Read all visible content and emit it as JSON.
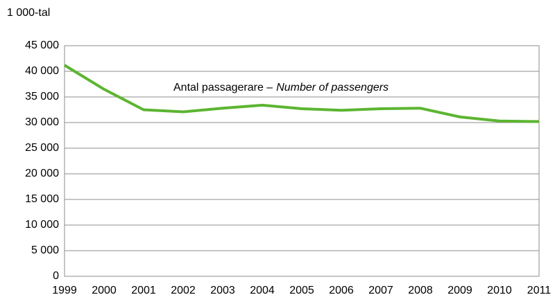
{
  "chart_data": {
    "type": "line",
    "y_axis_label": "1 000-tal",
    "annotation": {
      "text": "Antal passagerare –",
      "italic_text": "Number of passengers"
    },
    "categories": [
      "1999",
      "2000",
      "2001",
      "2002",
      "2003",
      "2004",
      "2005",
      "2006",
      "2007",
      "2008",
      "2009",
      "2010",
      "2011"
    ],
    "values": [
      41200,
      36500,
      32500,
      32100,
      32800,
      33400,
      32700,
      32400,
      32700,
      32800,
      31100,
      30300,
      30200
    ],
    "color": "#5cb531",
    "ylim": [
      0,
      45000
    ],
    "yticks": [
      {
        "value": 0,
        "label": "0"
      },
      {
        "value": 5000,
        "label": "5 000"
      },
      {
        "value": 10000,
        "label": "10 000"
      },
      {
        "value": 15000,
        "label": "15 000"
      },
      {
        "value": 20000,
        "label": "20 000"
      },
      {
        "value": 25000,
        "label": "25 000"
      },
      {
        "value": 30000,
        "label": "30 000"
      },
      {
        "value": 35000,
        "label": "35 000"
      },
      {
        "value": 40000,
        "label": "40 000"
      },
      {
        "value": 45000,
        "label": "45 000"
      }
    ],
    "grid": true
  }
}
